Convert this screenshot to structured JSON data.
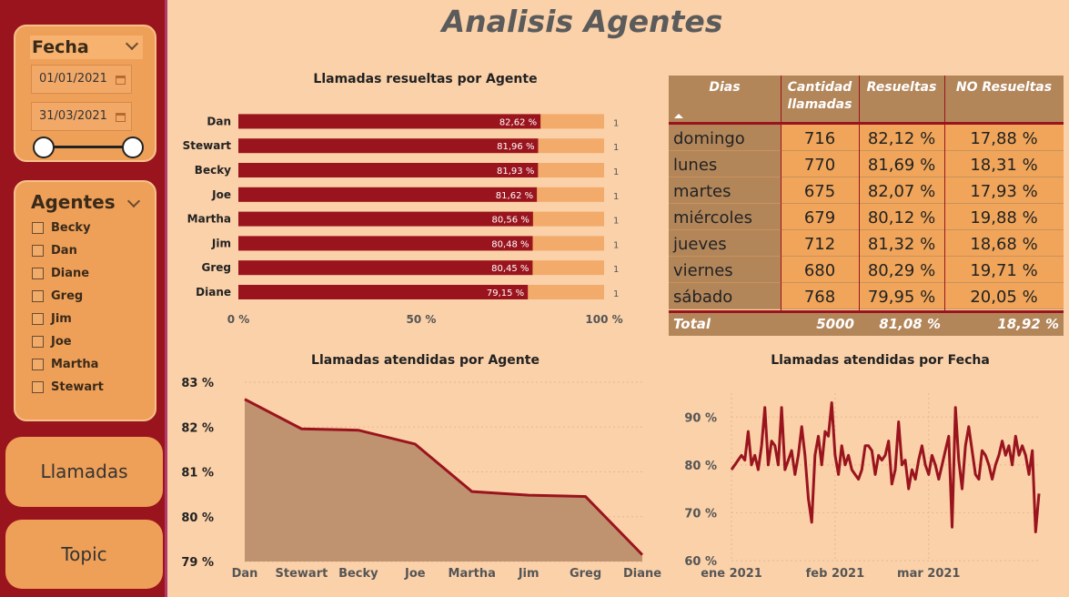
{
  "page_title": "Analisis Agentes",
  "sidebar": {
    "fecha": {
      "title": "Fecha",
      "start_date": "01/01/2021",
      "end_date": "31/03/2021"
    },
    "agentes": {
      "title": "Agentes",
      "items": [
        "Becky",
        "Dan",
        "Diane",
        "Greg",
        "Jim",
        "Joe",
        "Martha",
        "Stewart"
      ]
    },
    "buttons": {
      "llamadas": "Llamadas",
      "topic": "Topic"
    }
  },
  "chart_data": [
    {
      "type": "bar",
      "title": "Llamadas resueltas por Agente",
      "categories": [
        "Dan",
        "Stewart",
        "Becky",
        "Joe",
        "Martha",
        "Jim",
        "Greg",
        "Diane"
      ],
      "values": [
        82.62,
        81.96,
        81.93,
        81.62,
        80.56,
        80.48,
        80.45,
        79.15
      ],
      "value_labels": [
        "82,62 %",
        "81,96 %",
        "81,93 %",
        "81,62 %",
        "80,56 %",
        "80,48 %",
        "80,45 %",
        "79,15 %"
      ],
      "target_labels": [
        "1",
        "1",
        "1",
        "1",
        "1",
        "1",
        "1",
        "1"
      ],
      "xlim": [
        0,
        100
      ],
      "xticks": [
        "0 %",
        "50 %",
        "100 %"
      ]
    },
    {
      "type": "area",
      "title": "Llamadas atendidas por Agente",
      "categories": [
        "Dan",
        "Stewart",
        "Becky",
        "Joe",
        "Martha",
        "Jim",
        "Greg",
        "Diane"
      ],
      "values": [
        82.62,
        81.96,
        81.93,
        81.62,
        80.56,
        80.48,
        80.45,
        79.15
      ],
      "ylim": [
        79,
        83
      ],
      "yticks": [
        "83 %",
        "82 %",
        "81 %",
        "80 %",
        "79 %"
      ]
    },
    {
      "type": "line",
      "title": "Llamadas atendidas por Fecha",
      "x_start": "2021-01-01",
      "x_end": "2021-03-31",
      "values": [
        79,
        80,
        81,
        82,
        81,
        87,
        80,
        82,
        79,
        84,
        92,
        80,
        85,
        84,
        80,
        92,
        79,
        81,
        83,
        78,
        82,
        88,
        82,
        73,
        68,
        82,
        86,
        80,
        87,
        86,
        93,
        82,
        78,
        84,
        80,
        82,
        79,
        78,
        77,
        79,
        84,
        84,
        83,
        78,
        82,
        81,
        82,
        85,
        76,
        79,
        89,
        80,
        81,
        75,
        79,
        77,
        81,
        84,
        80,
        78,
        82,
        80,
        77,
        80,
        83,
        86,
        67,
        92,
        81,
        75,
        84,
        88,
        83,
        78,
        77,
        83,
        82,
        80,
        77,
        80,
        82,
        85,
        82,
        84,
        80,
        86,
        82,
        84,
        82,
        78,
        83,
        66,
        74
      ],
      "ylim": [
        60,
        95
      ],
      "yticks": [
        "90 %",
        "80 %",
        "70 %",
        "60 %"
      ],
      "xticks": [
        "ene 2021",
        "feb 2021",
        "mar 2021"
      ]
    }
  ],
  "table": {
    "headers": [
      "Dias",
      "Cantidad llamadas",
      "Resueltas",
      "NO Resueltas"
    ],
    "rows": [
      [
        "domingo",
        "716",
        "82,12 %",
        "17,88 %"
      ],
      [
        "lunes",
        "770",
        "81,69 %",
        "18,31 %"
      ],
      [
        "martes",
        "675",
        "82,07 %",
        "17,93 %"
      ],
      [
        "miércoles",
        "679",
        "80,12 %",
        "19,88 %"
      ],
      [
        "jueves",
        "712",
        "81,32 %",
        "18,68 %"
      ],
      [
        "viernes",
        "680",
        "80,29 %",
        "19,71 %"
      ],
      [
        "sábado",
        "768",
        "79,95 %",
        "20,05 %"
      ]
    ],
    "total": [
      "Total",
      "5000",
      "81,08 %",
      "18,92 %"
    ]
  },
  "colors": {
    "background": "#fbd1a9",
    "sidebar": "#9a141e",
    "accent_dark_red": "#9a141e",
    "card_orange": "#efa058",
    "bar_light": "#f2ab6a",
    "area_fill": "#c09370",
    "table_brown": "#b3865a"
  },
  "icons": [
    "chevron-down-icon",
    "calendar-icon",
    "checkbox-icon",
    "sort-ascending-icon"
  ]
}
